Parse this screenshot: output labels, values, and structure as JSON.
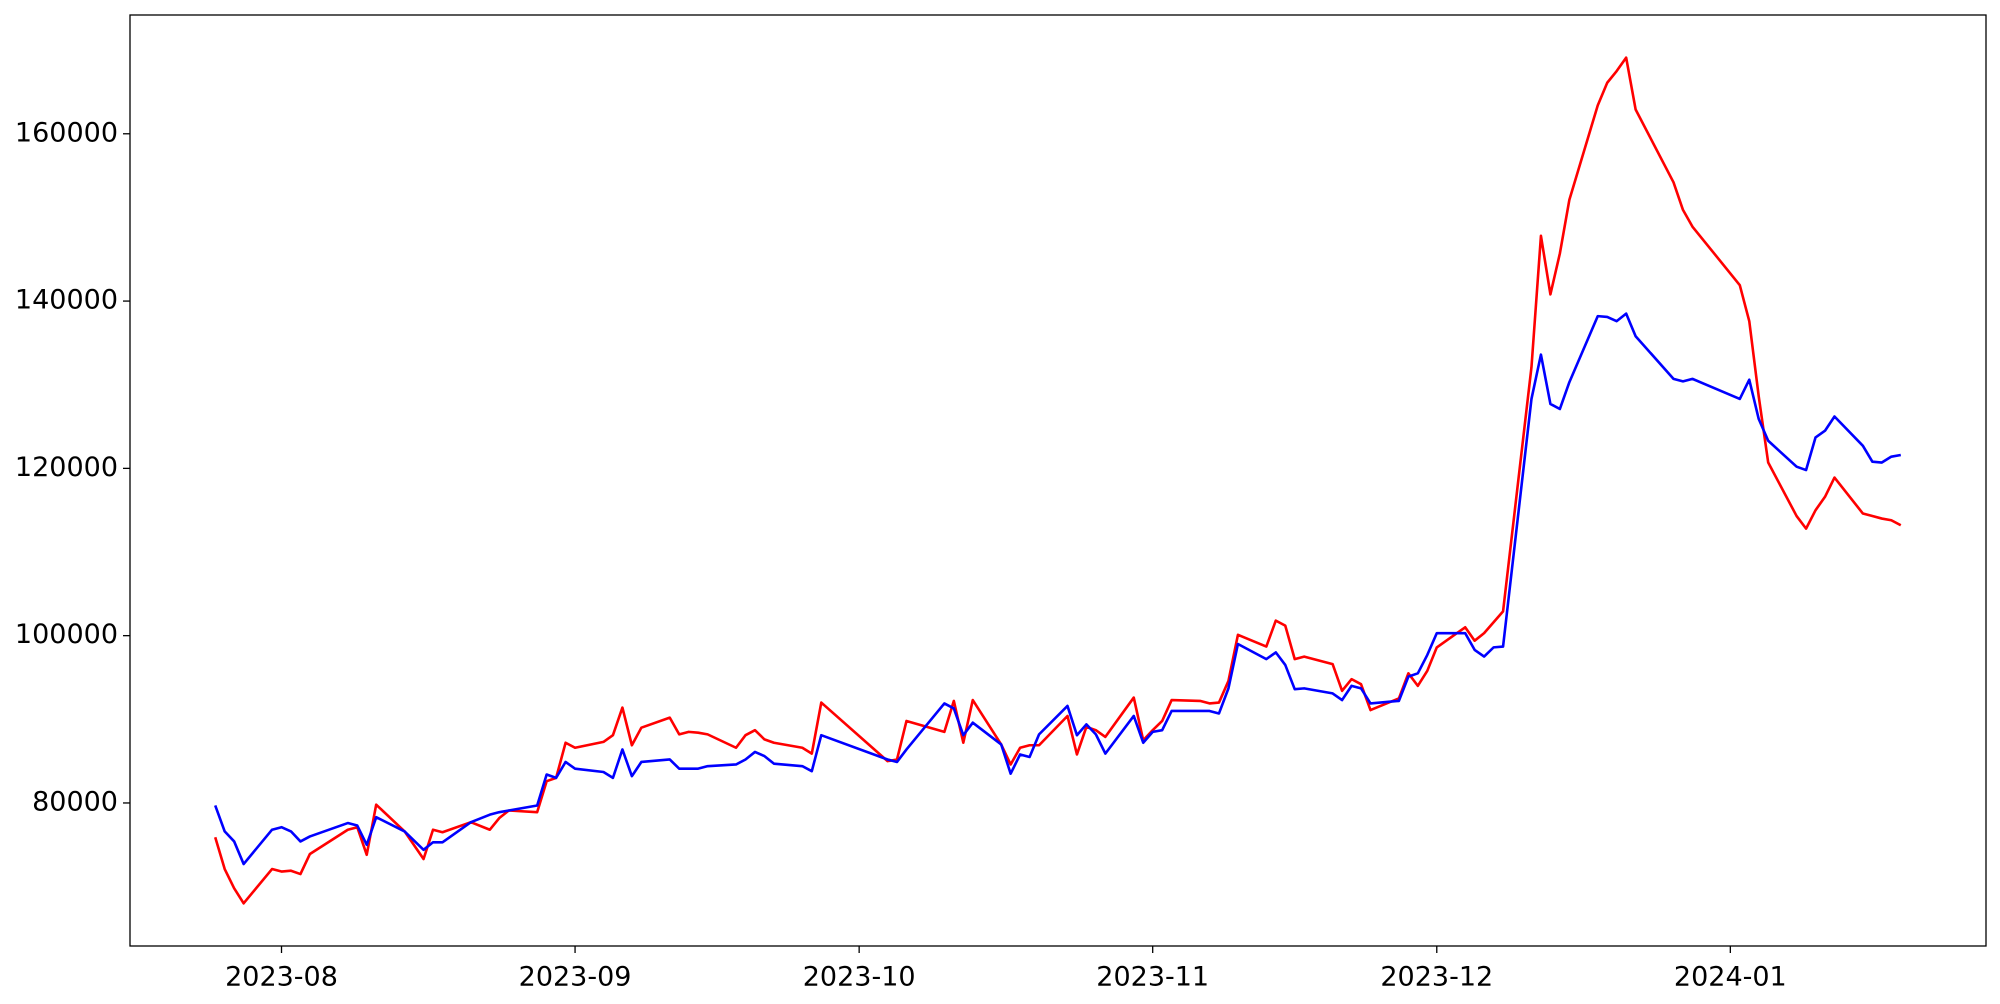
{
  "chart_data": {
    "type": "line",
    "x": [
      "2023-07-25",
      "2023-07-26",
      "2023-07-27",
      "2023-07-28",
      "2023-07-31",
      "2023-08-01",
      "2023-08-02",
      "2023-08-03",
      "2023-08-04",
      "2023-08-08",
      "2023-08-09",
      "2023-08-10",
      "2023-08-11",
      "2023-08-14",
      "2023-08-16",
      "2023-08-17",
      "2023-08-18",
      "2023-08-21",
      "2023-08-23",
      "2023-08-24",
      "2023-08-25",
      "2023-08-28",
      "2023-08-29",
      "2023-08-30",
      "2023-08-31",
      "2023-09-01",
      "2023-09-04",
      "2023-09-05",
      "2023-09-06",
      "2023-09-07",
      "2023-09-08",
      "2023-09-11",
      "2023-09-12",
      "2023-09-13",
      "2023-09-14",
      "2023-09-15",
      "2023-09-18",
      "2023-09-19",
      "2023-09-20",
      "2023-09-21",
      "2023-09-22",
      "2023-09-25",
      "2023-09-26",
      "2023-09-27",
      "2023-10-04",
      "2023-10-05",
      "2023-10-06",
      "2023-10-10",
      "2023-10-11",
      "2023-10-12",
      "2023-10-13",
      "2023-10-16",
      "2023-10-17",
      "2023-10-18",
      "2023-10-19",
      "2023-10-20",
      "2023-10-23",
      "2023-10-24",
      "2023-10-25",
      "2023-10-26",
      "2023-10-27",
      "2023-10-30",
      "2023-10-31",
      "2023-11-01",
      "2023-11-02",
      "2023-11-03",
      "2023-11-06",
      "2023-11-07",
      "2023-11-08",
      "2023-11-09",
      "2023-11-10",
      "2023-11-13",
      "2023-11-14",
      "2023-11-15",
      "2023-11-16",
      "2023-11-17",
      "2023-11-20",
      "2023-11-21",
      "2023-11-22",
      "2023-11-23",
      "2023-11-24",
      "2023-11-27",
      "2023-11-28",
      "2023-11-29",
      "2023-11-30",
      "2023-12-01",
      "2023-12-04",
      "2023-12-05",
      "2023-12-06",
      "2023-12-07",
      "2023-12-08",
      "2023-12-11",
      "2023-12-12",
      "2023-12-13",
      "2023-12-14",
      "2023-12-15",
      "2023-12-18",
      "2023-12-19",
      "2023-12-20",
      "2023-12-21",
      "2023-12-22",
      "2023-12-26",
      "2023-12-27",
      "2023-12-28",
      "2024-01-02",
      "2024-01-03",
      "2024-01-04",
      "2024-01-05",
      "2024-01-08",
      "2024-01-09",
      "2024-01-10",
      "2024-01-11",
      "2024-01-12",
      "2024-01-15",
      "2024-01-16",
      "2024-01-17",
      "2024-01-18",
      "2024-01-19"
    ],
    "series": [
      {
        "color": "#ff0000",
        "values": [
          75900,
          72100,
          69800,
          68000,
          72100,
          71800,
          71900,
          71500,
          73900,
          76800,
          77100,
          73800,
          79800,
          76600,
          73300,
          76800,
          76500,
          77700,
          76800,
          78200,
          79100,
          78900,
          82600,
          83000,
          87200,
          86600,
          87300,
          88100,
          91400,
          86900,
          89000,
          90200,
          88200,
          88500,
          88400,
          88200,
          86600,
          88100,
          88700,
          87600,
          87200,
          86600,
          85900,
          92000,
          85000,
          85200,
          89800,
          88500,
          92200,
          87200,
          92300,
          87000,
          84600,
          86600,
          86900,
          86900,
          90400,
          85800,
          89100,
          88700,
          87900,
          92600,
          87500,
          88700,
          89800,
          92300,
          92200,
          91900,
          92000,
          94600,
          100100,
          98700,
          101800,
          101200,
          97200,
          97500,
          96600,
          93400,
          94800,
          94200,
          91100,
          92500,
          95500,
          94000,
          95800,
          98600,
          101000,
          99400,
          100300,
          101600,
          102900,
          132100,
          147800,
          140800,
          145700,
          152100,
          163400,
          166100,
          167500,
          169100,
          162900,
          154200,
          150900,
          148900,
          141900,
          137600,
          128600,
          120700,
          114300,
          112800,
          115000,
          116600,
          118900,
          114600,
          114300,
          114000,
          113800,
          113200
        ]
      },
      {
        "color": "#0000ff",
        "values": [
          79700,
          76600,
          75400,
          72700,
          76800,
          77100,
          76600,
          75400,
          76000,
          77600,
          77300,
          75000,
          78300,
          76600,
          74400,
          75300,
          75300,
          77700,
          78600,
          78900,
          79100,
          79700,
          83400,
          83000,
          84900,
          84100,
          83700,
          83000,
          86400,
          83200,
          84900,
          85200,
          84100,
          84100,
          84100,
          84400,
          84600,
          85200,
          86100,
          85600,
          84700,
          84400,
          83800,
          88100,
          85200,
          84900,
          86400,
          91900,
          91300,
          88100,
          89600,
          87000,
          83500,
          85800,
          85500,
          88200,
          91600,
          88100,
          89400,
          88200,
          85900,
          90400,
          87200,
          88500,
          88700,
          91000,
          91000,
          91000,
          90700,
          93700,
          99000,
          97200,
          98000,
          96500,
          93600,
          93700,
          93100,
          92300,
          94000,
          93700,
          91900,
          92200,
          95100,
          95500,
          97700,
          100300,
          100300,
          98300,
          97500,
          98600,
          98700,
          128300,
          133600,
          127700,
          127100,
          130300,
          138200,
          138100,
          137600,
          138500,
          135800,
          130700,
          130400,
          130700,
          128300,
          130600,
          125900,
          123300,
          120200,
          119800,
          123700,
          124500,
          126200,
          122700,
          120800,
          120700,
          121400,
          121600
        ]
      }
    ],
    "xlim": [
      "2023-07-16",
      "2024-01-28"
    ],
    "xticks": [
      {
        "value": "2023-08-01",
        "label": "2023-08"
      },
      {
        "value": "2023-09-01",
        "label": "2023-09"
      },
      {
        "value": "2023-10-01",
        "label": "2023-10"
      },
      {
        "value": "2023-11-01",
        "label": "2023-11"
      },
      {
        "value": "2023-12-01",
        "label": "2023-12"
      },
      {
        "value": "2024-01-01",
        "label": "2024-01"
      }
    ],
    "ylim": [
      62900,
      174200
    ],
    "yticks": [
      80000,
      100000,
      120000,
      140000,
      160000
    ],
    "grid": false
  }
}
